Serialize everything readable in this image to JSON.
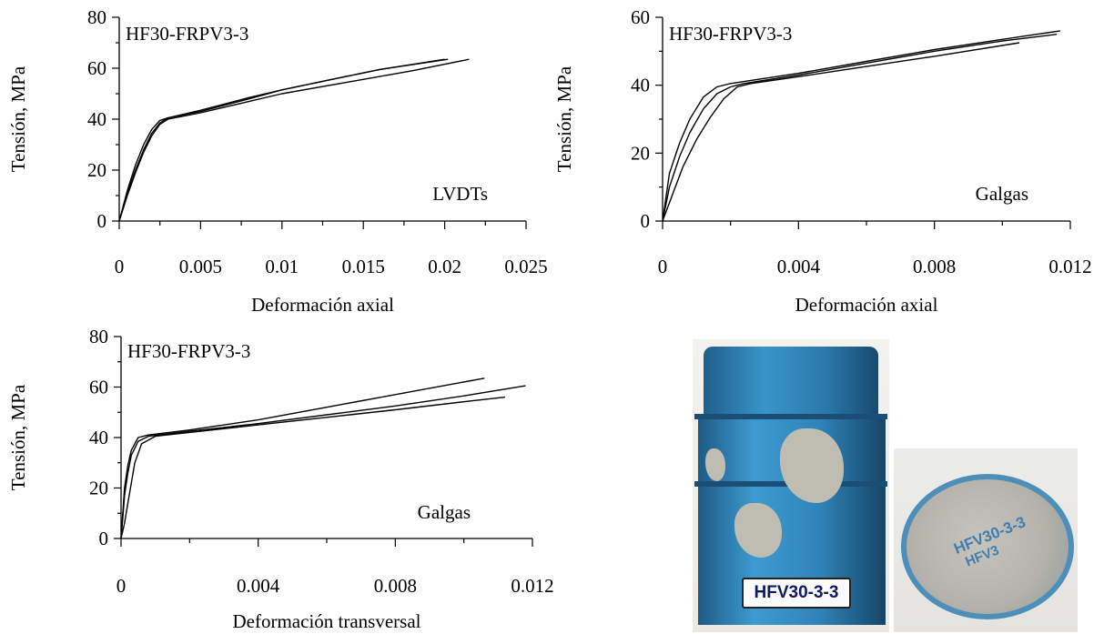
{
  "panels": [
    {
      "id": "a",
      "title": "HF30-FRPV3-3",
      "ylabel": "Tensión, MPa",
      "xlabel": "Deformación axial",
      "annotation": "LVDTs",
      "xticks": [
        "0",
        "0.005",
        "0.01",
        "0.015",
        "0.02",
        "0.025"
      ],
      "yticks": [
        "0",
        "20",
        "40",
        "60",
        "80"
      ]
    },
    {
      "id": "b",
      "title": "HF30-FRPV3-3",
      "ylabel": "Tensión, MPa",
      "xlabel": "Deformación axial",
      "annotation": "Galgas",
      "xticks": [
        "0",
        "0.004",
        "0.008",
        "0.012"
      ],
      "yticks": [
        "0",
        "20",
        "40",
        "60"
      ]
    },
    {
      "id": "c",
      "title": "HF30-FRPV3-3",
      "ylabel": "Tensión, MPa",
      "xlabel": "Deformación transversal",
      "annotation": "Galgas",
      "xticks": [
        "0",
        "0.004",
        "0.008",
        "0.012"
      ],
      "yticks": [
        "0",
        "20",
        "40",
        "60",
        "80"
      ]
    }
  ],
  "photos": {
    "left_label": "HFV30-3-3",
    "right_text_1": "HFV30-3-3",
    "right_text_2": "HFV3"
  },
  "chart_data": [
    {
      "type": "line",
      "title": "HF30-FRPV3-3",
      "xlabel": "Deformación axial",
      "ylabel": "Tensión, MPa",
      "annotation": "LVDTs",
      "xlim": [
        0,
        0.025
      ],
      "ylim": [
        0,
        80
      ],
      "series": [
        {
          "x": [
            0,
            0.0005,
            0.001,
            0.0015,
            0.002,
            0.0025,
            0.003,
            0.005,
            0.008,
            0.01,
            0.013,
            0.016,
            0.02
          ],
          "y": [
            0,
            12,
            22,
            30,
            36,
            39.5,
            40.5,
            43,
            48,
            51.5,
            55.5,
            59.5,
            63.5
          ]
        },
        {
          "x": [
            0,
            0.0005,
            0.001,
            0.0015,
            0.002,
            0.0025,
            0.003,
            0.005,
            0.008,
            0.01,
            0.013,
            0.016,
            0.0202
          ],
          "y": [
            0,
            11,
            20,
            28,
            34.5,
            38.5,
            40.5,
            43.5,
            48.5,
            51.5,
            55.5,
            59.5,
            63.5
          ]
        },
        {
          "x": [
            0,
            0.0005,
            0.001,
            0.0015,
            0.002,
            0.0025,
            0.003,
            0.005,
            0.008,
            0.01,
            0.014,
            0.018,
            0.0215
          ],
          "y": [
            0,
            10,
            19,
            27,
            33.5,
            38,
            40,
            42.5,
            47,
            50,
            54.5,
            59,
            63.5
          ]
        }
      ]
    },
    {
      "type": "line",
      "title": "HF30-FRPV3-3",
      "xlabel": "Deformación axial",
      "ylabel": "Tensión, MPa",
      "annotation": "Galgas",
      "xlim": [
        0,
        0.012
      ],
      "ylim": [
        0,
        60
      ],
      "series": [
        {
          "x": [
            0,
            0.0002,
            0.0005,
            0.0008,
            0.0012,
            0.0016,
            0.002,
            0.004,
            0.006,
            0.008,
            0.01,
            0.0117
          ],
          "y": [
            0,
            14,
            23,
            30,
            36.5,
            39.5,
            40.5,
            43.5,
            47,
            50.5,
            53.5,
            56
          ]
        },
        {
          "x": [
            0,
            0.0002,
            0.0005,
            0.0008,
            0.0012,
            0.0016,
            0.002,
            0.0024,
            0.004,
            0.006,
            0.008,
            0.01,
            0.0116
          ],
          "y": [
            0,
            10,
            19,
            26,
            33,
            37.5,
            39.5,
            40.5,
            43,
            46.5,
            50,
            53,
            55
          ]
        },
        {
          "x": [
            0,
            0.0003,
            0.0006,
            0.001,
            0.0014,
            0.0018,
            0.0022,
            0.0026,
            0.004,
            0.006,
            0.008,
            0.0105
          ],
          "y": [
            0,
            8,
            16,
            24,
            30.5,
            36,
            39.5,
            40.5,
            42.5,
            45.5,
            48.5,
            52.5
          ]
        }
      ]
    },
    {
      "type": "line",
      "title": "HF30-FRPV3-3",
      "xlabel": "Deformación transversal",
      "ylabel": "Tensión, MPa",
      "annotation": "Galgas",
      "xlim": [
        0,
        0.012
      ],
      "ylim": [
        0,
        80
      ],
      "series": [
        {
          "x": [
            0,
            5e-05,
            0.0001,
            0.0002,
            0.0003,
            0.0005,
            0.0008,
            0.002,
            0.004,
            0.006,
            0.008,
            0.0106
          ],
          "y": [
            0,
            10,
            20,
            29,
            35,
            40,
            41,
            43,
            47,
            52,
            57,
            63.5
          ]
        },
        {
          "x": [
            0,
            5e-05,
            0.0001,
            0.0002,
            0.0003,
            0.0005,
            0.0008,
            0.002,
            0.004,
            0.006,
            0.008,
            0.01,
            0.0118
          ],
          "y": [
            0,
            8,
            17,
            26,
            33,
            38.5,
            40.5,
            42.5,
            45.5,
            49,
            52.5,
            56.5,
            60.5
          ]
        },
        {
          "x": [
            0,
            0.0001,
            0.0002,
            0.0003,
            0.0004,
            0.0006,
            0.001,
            0.002,
            0.004,
            0.006,
            0.008,
            0.0102,
            0.0112
          ],
          "y": [
            0,
            6,
            14,
            22,
            30,
            37.5,
            40.5,
            42,
            45,
            48,
            51,
            54.5,
            56
          ]
        }
      ]
    }
  ]
}
